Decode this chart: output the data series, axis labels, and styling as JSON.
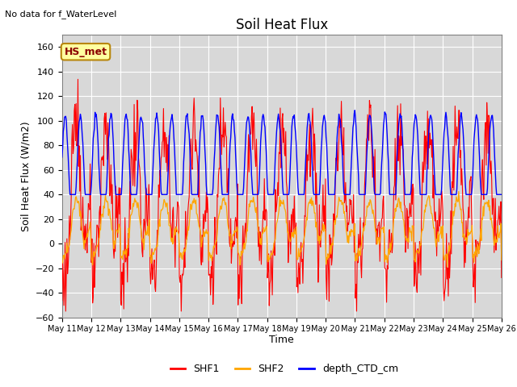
{
  "title": "Soil Heat Flux",
  "top_left_text": "No data for f_WaterLevel",
  "box_label": "HS_met",
  "ylabel": "Soil Heat Flux (W/m2)",
  "xlabel": "Time",
  "ylim": [
    -60,
    170
  ],
  "yticks": [
    -60,
    -40,
    -20,
    0,
    20,
    40,
    60,
    80,
    100,
    120,
    140,
    160
  ],
  "xtick_labels": [
    "May 11",
    "May 12",
    "May 13",
    "May 14",
    "May 15",
    "May 16",
    "May 17",
    "May 18",
    "May 19",
    "May 20",
    "May 21",
    "May 22",
    "May 23",
    "May 24",
    "May 25",
    "May 26"
  ],
  "shf1_color": "#ff0000",
  "shf2_color": "#ffa500",
  "depth_color": "#0000ff",
  "bg_color": "#d8d8d8",
  "legend_labels": [
    "SHF1",
    "SHF2",
    "depth_CTD_cm"
  ],
  "legend_colors": [
    "#ff0000",
    "#ffa500",
    "#0000ff"
  ],
  "figsize": [
    6.4,
    4.8
  ],
  "dpi": 100
}
